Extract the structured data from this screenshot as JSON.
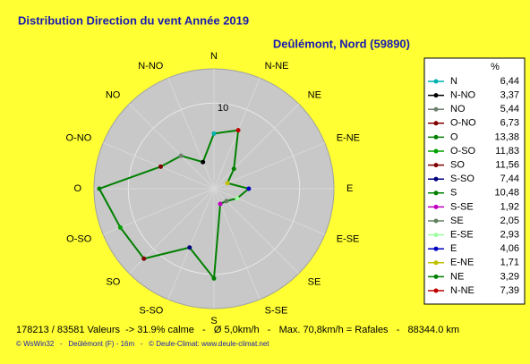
{
  "chart_data": {
    "type": "radar",
    "title": "Distribution Direction du vent   Année 2019",
    "subtitle": "Deûlémont, Nord (59890)",
    "categories": [
      "N",
      "N-NO",
      "NO",
      "O-NO",
      "O",
      "O-SO",
      "SO",
      "S-SO",
      "S",
      "S-SE",
      "SE",
      "E-SE",
      "E",
      "E-NE",
      "NE",
      "N-NE"
    ],
    "values": [
      6.44,
      3.37,
      5.44,
      6.73,
      13.38,
      11.83,
      11.56,
      7.44,
      10.48,
      1.92,
      2.05,
      2.93,
      4.06,
      1.71,
      3.29,
      7.39
    ],
    "value_labels": [
      "6,44",
      "3,37",
      "5,44",
      "6,73",
      "13,38",
      "11,83",
      "11,56",
      "7,44",
      "10,48",
      "1,92",
      "2,05",
      "2,93",
      "4,06",
      "1,71",
      "3,29",
      "7,39"
    ],
    "colors": [
      "#00b0b0",
      "#000000",
      "#708070",
      "#800000",
      "#008000",
      "#00a000",
      "#800000",
      "#000080",
      "#008000",
      "#c000c0",
      "#608060",
      "#a0ffa0",
      "#0000c0",
      "#c0c000",
      "#008000",
      "#c00000"
    ],
    "line_color": "#008000",
    "legend_header": "%",
    "rlim": [
      0,
      14
    ],
    "rticks": [
      10
    ],
    "footer": "178213 / 83581 Valeurs  -> 31.9% calme   -   Ø 5,0km/h   -   Max. 70,8km/h = Rafales   -   88344.0 km",
    "credits": "© WsWin32   -   Deûlémont (F) - 16m   -   © Deule-Climat: www.deule-climat.net"
  }
}
